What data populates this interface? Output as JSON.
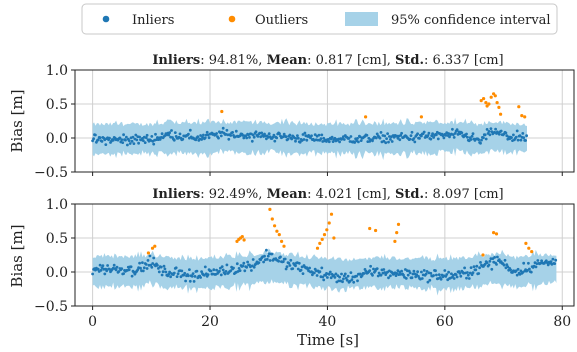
{
  "chart_data": [
    {
      "type": "scatter",
      "title_parts": [
        {
          "label": "Inliers",
          "value": ": 94.81%, "
        },
        {
          "label": "Mean",
          "value": ": 0.817 [cm], "
        },
        {
          "label": "Std.",
          "value": ": 6.337 [cm]"
        }
      ],
      "xlabel": "",
      "ylabel": "Bias [m]",
      "xlim": [
        -3,
        82
      ],
      "ylim": [
        -0.5,
        1.0
      ],
      "xticks": [
        0,
        20,
        40,
        60,
        80
      ],
      "xtick_labels_shown": false,
      "yticks": [
        -0.5,
        0.0,
        0.5,
        1.0
      ],
      "ytick_labels": [
        "−0.5",
        "0.0",
        "0.5",
        "1.0"
      ],
      "grid": true,
      "time_range": [
        0,
        74
      ],
      "band_halfwidth": 0.12,
      "band_start": 0,
      "series": [
        {
          "name": "Inliers",
          "color": "#1f77b4",
          "kind": "points",
          "trend": [
            [
              0,
              -0.03
            ],
            [
              10,
              -0.02
            ],
            [
              13,
              0.05
            ],
            [
              18,
              0.0
            ],
            [
              22,
              0.06
            ],
            [
              30,
              0.03
            ],
            [
              40,
              -0.02
            ],
            [
              50,
              0.0
            ],
            [
              58,
              0.03
            ],
            [
              63,
              0.05
            ],
            [
              66,
              -0.05
            ],
            [
              68,
              0.1
            ],
            [
              71,
              0.02
            ],
            [
              74,
              -0.02
            ]
          ],
          "noise": 0.035
        },
        {
          "name": "Outliers",
          "color": "#ff8c00",
          "kind": "points",
          "points": [
            [
              22,
              0.39
            ],
            [
              46.5,
              0.31
            ],
            [
              56,
              0.31
            ],
            [
              66.2,
              0.55
            ],
            [
              66.6,
              0.58
            ],
            [
              67.0,
              0.52
            ],
            [
              67.5,
              0.5
            ],
            [
              67.9,
              0.6
            ],
            [
              68.3,
              0.65
            ],
            [
              68.6,
              0.62
            ],
            [
              68.9,
              0.52
            ],
            [
              69.2,
              0.45
            ],
            [
              67.2,
              0.47
            ],
            [
              69.5,
              0.35
            ],
            [
              72.6,
              0.46
            ],
            [
              73.1,
              0.33
            ],
            [
              73.6,
              0.31
            ]
          ]
        }
      ]
    },
    {
      "type": "scatter",
      "title_parts": [
        {
          "label": "Inliers",
          "value": ": 92.49%, "
        },
        {
          "label": "Mean",
          "value": ": 4.021 [cm], "
        },
        {
          "label": "Std.",
          "value": ": 8.097 [cm]"
        }
      ],
      "xlabel": "Time [s]",
      "ylabel": "Bias [m]",
      "xlim": [
        -3,
        82
      ],
      "ylim": [
        -0.5,
        1.0
      ],
      "xticks": [
        0,
        20,
        40,
        60,
        80
      ],
      "xtick_labels": [
        "0",
        "20",
        "40",
        "60",
        "80"
      ],
      "yticks": [
        -0.5,
        0.0,
        0.5,
        1.0
      ],
      "ytick_labels": [
        "−0.5",
        "0.0",
        "0.5",
        "1.0"
      ],
      "grid": true,
      "time_range": [
        0,
        79
      ],
      "band_halfwidth": 0.12,
      "band_start": 0,
      "series": [
        {
          "name": "Inliers",
          "color": "#1f77b4",
          "kind": "points",
          "trend": [
            [
              0,
              0.05
            ],
            [
              8,
              0.04
            ],
            [
              10,
              0.15
            ],
            [
              12,
              0.0
            ],
            [
              18,
              -0.05
            ],
            [
              24,
              0.05
            ],
            [
              27,
              0.1
            ],
            [
              30,
              0.25
            ],
            [
              33,
              0.12
            ],
            [
              38,
              0.0
            ],
            [
              40,
              -0.05
            ],
            [
              43,
              -0.1
            ],
            [
              48,
              0.0
            ],
            [
              52,
              -0.02
            ],
            [
              58,
              -0.05
            ],
            [
              62,
              -0.06
            ],
            [
              65,
              0.03
            ],
            [
              69,
              0.18
            ],
            [
              72,
              0.0
            ],
            [
              76,
              0.12
            ],
            [
              79,
              0.15
            ]
          ],
          "noise": 0.04
        },
        {
          "name": "Outliers",
          "color": "#ff8c00",
          "kind": "points",
          "points": [
            [
              9.5,
              0.28
            ],
            [
              10.2,
              0.35
            ],
            [
              10.6,
              0.38
            ],
            [
              24.6,
              0.45
            ],
            [
              24.9,
              0.48
            ],
            [
              25.2,
              0.5
            ],
            [
              25.5,
              0.52
            ],
            [
              25.8,
              0.47
            ],
            [
              30.2,
              0.92
            ],
            [
              30.6,
              0.78
            ],
            [
              31.0,
              0.68
            ],
            [
              31.4,
              0.6
            ],
            [
              31.8,
              0.55
            ],
            [
              32.2,
              0.45
            ],
            [
              32.6,
              0.38
            ],
            [
              38.3,
              0.35
            ],
            [
              38.7,
              0.42
            ],
            [
              39.1,
              0.48
            ],
            [
              39.5,
              0.55
            ],
            [
              39.9,
              0.62
            ],
            [
              40.3,
              0.72
            ],
            [
              40.7,
              0.85
            ],
            [
              41.1,
              0.5
            ],
            [
              47.2,
              0.64
            ],
            [
              48.2,
              0.61
            ],
            [
              51.5,
              0.45
            ],
            [
              51.8,
              0.58
            ],
            [
              52.1,
              0.7
            ],
            [
              66.5,
              0.25
            ],
            [
              68.3,
              0.58
            ],
            [
              68.8,
              0.56
            ],
            [
              73.8,
              0.42
            ],
            [
              74.3,
              0.35
            ],
            [
              74.8,
              0.3
            ]
          ]
        }
      ]
    }
  ],
  "legend": {
    "placement": "top-center",
    "items": [
      {
        "label": "Inliers",
        "marker": "dot",
        "color": "#1f77b4"
      },
      {
        "label": "Outliers",
        "marker": "dot",
        "color": "#ff8c00"
      },
      {
        "label": "95% confidence interval",
        "marker": "patch",
        "color": "#a6d2e8"
      }
    ]
  },
  "colors": {
    "inlier": "#1f77b4",
    "outlier": "#ff8c00",
    "band": "#a6d2e8",
    "grid": "#d0d0d0"
  }
}
